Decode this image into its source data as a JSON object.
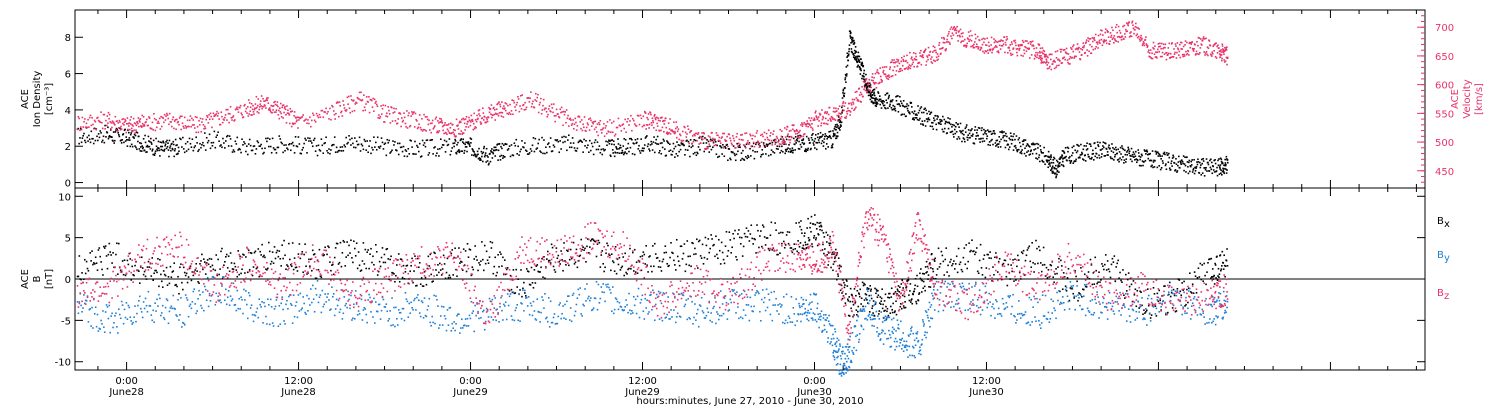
{
  "colors": {
    "black": "#000000",
    "blue": "#1e7fd6",
    "red": "#e8336a"
  },
  "chart_data": [
    {
      "type": "scatter",
      "panel": "top",
      "ylabel_lines": [
        "ACE",
        "Ion Density",
        "[cm⁻³]"
      ],
      "ylabel2_lines": [
        "ACE",
        "Velocity",
        "[km/s]"
      ],
      "ylim": [
        -0.3,
        9.5
      ],
      "y2lim": [
        420,
        730
      ],
      "yticks": [
        0,
        2,
        4,
        6,
        8
      ],
      "y2ticks": [
        450,
        500,
        550,
        600,
        650,
        700
      ],
      "series": [
        {
          "color": "black",
          "axis": "left",
          "points": [
            [
              -0.29,
              2.6
            ],
            [
              -0.12,
              2.7
            ],
            [
              0.0,
              2.5
            ],
            [
              0.1,
              2.2
            ],
            [
              0.2,
              1.9
            ],
            [
              0.3,
              2.0
            ],
            [
              0.5,
              2.4
            ],
            [
              0.7,
              2.0
            ],
            [
              0.9,
              2.2
            ],
            [
              1.1,
              2.0
            ],
            [
              1.3,
              2.3
            ],
            [
              1.5,
              2.0
            ],
            [
              1.7,
              1.9
            ],
            [
              1.9,
              2.0
            ],
            [
              2.0,
              2.0
            ],
            [
              2.1,
              1.5
            ],
            [
              2.2,
              1.9
            ],
            [
              2.4,
              2.1
            ],
            [
              2.6,
              2.2
            ],
            [
              2.8,
              1.9
            ],
            [
              2.9,
              2.0
            ],
            [
              3.05,
              2.2
            ],
            [
              3.2,
              1.8
            ],
            [
              3.35,
              2.1
            ],
            [
              3.5,
              1.7
            ],
            [
              3.65,
              1.8
            ],
            [
              3.8,
              2.1
            ],
            [
              3.9,
              2.2
            ],
            [
              4.0,
              2.3
            ],
            [
              4.1,
              2.4
            ],
            [
              4.15,
              3.5
            ],
            [
              4.2,
              8.0
            ],
            [
              4.24,
              7.0
            ],
            [
              4.28,
              6.0
            ],
            [
              4.32,
              5.0
            ],
            [
              4.36,
              4.6
            ],
            [
              4.45,
              4.5
            ],
            [
              4.55,
              4.0
            ],
            [
              4.65,
              3.6
            ],
            [
              4.75,
              3.2
            ],
            [
              4.85,
              2.8
            ],
            [
              4.95,
              2.6
            ],
            [
              5.05,
              2.5
            ],
            [
              5.15,
              2.3
            ],
            [
              5.25,
              1.9
            ],
            [
              5.35,
              1.4
            ],
            [
              5.4,
              0.8
            ],
            [
              5.45,
              1.5
            ],
            [
              5.55,
              1.7
            ],
            [
              5.65,
              1.8
            ],
            [
              5.75,
              1.7
            ],
            [
              5.85,
              1.5
            ],
            [
              5.95,
              1.3
            ],
            [
              6.05,
              1.2
            ],
            [
              6.15,
              1.0
            ],
            [
              6.25,
              0.9
            ],
            [
              6.35,
              0.9
            ],
            [
              6.4,
              1.0
            ]
          ]
        },
        {
          "color": "red",
          "axis": "right",
          "points": [
            [
              -0.29,
              535
            ],
            [
              -0.12,
              540
            ],
            [
              0.0,
              530
            ],
            [
              0.1,
              535
            ],
            [
              0.25,
              540
            ],
            [
              0.4,
              530
            ],
            [
              0.55,
              545
            ],
            [
              0.7,
              560
            ],
            [
              0.8,
              570
            ],
            [
              0.9,
              555
            ],
            [
              1.0,
              535
            ],
            [
              1.2,
              555
            ],
            [
              1.35,
              575
            ],
            [
              1.5,
              550
            ],
            [
              1.65,
              540
            ],
            [
              1.8,
              530
            ],
            [
              1.9,
              525
            ],
            [
              2.0,
              535
            ],
            [
              2.1,
              550
            ],
            [
              2.2,
              560
            ],
            [
              2.35,
              575
            ],
            [
              2.5,
              550
            ],
            [
              2.65,
              530
            ],
            [
              2.8,
              525
            ],
            [
              3.0,
              540
            ],
            [
              3.1,
              535
            ],
            [
              3.2,
              520
            ],
            [
              3.35,
              505
            ],
            [
              3.5,
              500
            ],
            [
              3.65,
              505
            ],
            [
              3.8,
              510
            ],
            [
              3.9,
              520
            ],
            [
              4.0,
              540
            ],
            [
              4.1,
              550
            ],
            [
              4.2,
              560
            ],
            [
              4.3,
              600
            ],
            [
              4.4,
              620
            ],
            [
              4.5,
              640
            ],
            [
              4.6,
              645
            ],
            [
              4.7,
              655
            ],
            [
              4.8,
              690
            ],
            [
              4.9,
              680
            ],
            [
              5.0,
              670
            ],
            [
              5.1,
              670
            ],
            [
              5.2,
              665
            ],
            [
              5.3,
              660
            ],
            [
              5.35,
              640
            ],
            [
              5.45,
              650
            ],
            [
              5.55,
              660
            ],
            [
              5.65,
              680
            ],
            [
              5.75,
              690
            ],
            [
              5.85,
              700
            ],
            [
              5.95,
              660
            ],
            [
              6.05,
              660
            ],
            [
              6.15,
              665
            ],
            [
              6.25,
              670
            ],
            [
              6.35,
              660
            ],
            [
              6.4,
              650
            ]
          ]
        }
      ]
    },
    {
      "type": "scatter",
      "panel": "bottom",
      "ylabel_lines": [
        "ACE",
        "B",
        "[nT]"
      ],
      "ylim": [
        -11,
        11
      ],
      "yticks": [
        -10,
        -5,
        0,
        5,
        10
      ],
      "legend": [
        {
          "label": "B",
          "sub": "x",
          "color": "black"
        },
        {
          "label": "B",
          "sub": "y",
          "color": "blue"
        },
        {
          "label": "B",
          "sub": "z",
          "color": "red"
        }
      ],
      "series": [
        {
          "color": "black",
          "points": [
            [
              -0.29,
              1
            ],
            [
              -0.1,
              3
            ],
            [
              0.1,
              1
            ],
            [
              0.3,
              0
            ],
            [
              0.5,
              2
            ],
            [
              0.7,
              2
            ],
            [
              0.9,
              3
            ],
            [
              1.1,
              2
            ],
            [
              1.3,
              3
            ],
            [
              1.5,
              2
            ],
            [
              1.7,
              1
            ],
            [
              1.9,
              2
            ],
            [
              2.1,
              3
            ],
            [
              2.3,
              -1
            ],
            [
              2.5,
              3
            ],
            [
              2.7,
              3
            ],
            [
              2.9,
              2
            ],
            [
              3.1,
              3
            ],
            [
              3.3,
              3
            ],
            [
              3.5,
              4
            ],
            [
              3.7,
              5
            ],
            [
              3.9,
              5
            ],
            [
              4.0,
              6
            ],
            [
              4.1,
              3
            ],
            [
              4.2,
              -3
            ],
            [
              4.3,
              -2
            ],
            [
              4.4,
              -3
            ],
            [
              4.5,
              -2
            ],
            [
              4.6,
              -1
            ],
            [
              4.7,
              2
            ],
            [
              4.9,
              3
            ],
            [
              5.1,
              1
            ],
            [
              5.3,
              3
            ],
            [
              5.5,
              -1
            ],
            [
              5.7,
              2
            ],
            [
              5.9,
              -3
            ],
            [
              6.1,
              -2
            ],
            [
              6.3,
              1
            ],
            [
              6.4,
              2
            ]
          ]
        },
        {
          "color": "blue",
          "points": [
            [
              -0.29,
              -3
            ],
            [
              -0.1,
              -5
            ],
            [
              0.1,
              -3
            ],
            [
              0.3,
              -4
            ],
            [
              0.5,
              -1
            ],
            [
              0.7,
              -3
            ],
            [
              0.9,
              -4
            ],
            [
              1.1,
              -2
            ],
            [
              1.3,
              -3
            ],
            [
              1.5,
              -4
            ],
            [
              1.7,
              -3
            ],
            [
              1.9,
              -5
            ],
            [
              2.1,
              -4
            ],
            [
              2.3,
              -3
            ],
            [
              2.5,
              -4
            ],
            [
              2.7,
              -2
            ],
            [
              2.9,
              -3
            ],
            [
              3.1,
              -3
            ],
            [
              3.3,
              -4
            ],
            [
              3.5,
              -3
            ],
            [
              3.7,
              -3
            ],
            [
              3.9,
              -4
            ],
            [
              4.0,
              -3
            ],
            [
              4.1,
              -7
            ],
            [
              4.15,
              -10
            ],
            [
              4.2,
              -9
            ],
            [
              4.3,
              -3
            ],
            [
              4.4,
              -6
            ],
            [
              4.5,
              -7
            ],
            [
              4.6,
              -8
            ],
            [
              4.7,
              -2
            ],
            [
              4.9,
              -2
            ],
            [
              5.1,
              -3
            ],
            [
              5.3,
              -4
            ],
            [
              5.5,
              -2
            ],
            [
              5.7,
              -3
            ],
            [
              5.9,
              -4
            ],
            [
              6.1,
              -2
            ],
            [
              6.3,
              -4
            ],
            [
              6.4,
              -3
            ]
          ]
        },
        {
          "color": "red",
          "points": [
            [
              -0.29,
              -2
            ],
            [
              -0.1,
              -1
            ],
            [
              0.1,
              3
            ],
            [
              0.3,
              4
            ],
            [
              0.5,
              -1
            ],
            [
              0.7,
              2
            ],
            [
              0.9,
              -1
            ],
            [
              1.1,
              3
            ],
            [
              1.3,
              -2
            ],
            [
              1.5,
              0
            ],
            [
              1.7,
              2
            ],
            [
              1.9,
              3
            ],
            [
              2.1,
              -5
            ],
            [
              2.3,
              4
            ],
            [
              2.5,
              3
            ],
            [
              2.7,
              5
            ],
            [
              2.9,
              4
            ],
            [
              3.1,
              -3
            ],
            [
              3.3,
              0
            ],
            [
              3.5,
              -2
            ],
            [
              3.7,
              2
            ],
            [
              3.9,
              3
            ],
            [
              4.0,
              2
            ],
            [
              4.1,
              4
            ],
            [
              4.2,
              -6
            ],
            [
              4.3,
              8
            ],
            [
              4.4,
              5
            ],
            [
              4.5,
              -3
            ],
            [
              4.6,
              7
            ],
            [
              4.7,
              -1
            ],
            [
              4.9,
              -3
            ],
            [
              5.1,
              2
            ],
            [
              5.3,
              -1
            ],
            [
              5.5,
              3
            ],
            [
              5.7,
              -2
            ],
            [
              5.9,
              -1
            ],
            [
              6.1,
              -3
            ],
            [
              6.3,
              -2
            ],
            [
              6.4,
              -1
            ]
          ]
        }
      ]
    }
  ],
  "x_axis": {
    "xlim": [
      -0.3,
      7.55
    ],
    "major_ticks": [
      0,
      1,
      2,
      3,
      4,
      5
    ],
    "tick_labels": [
      {
        "x": 0,
        "time": "0:00",
        "day": "June28"
      },
      {
        "x": 1,
        "time": "12:00",
        "day": "June28"
      },
      {
        "x": 2,
        "time": "0:00",
        "day": "June29"
      },
      {
        "x": 3,
        "time": "12:00",
        "day": "June29"
      },
      {
        "x": 4,
        "time": "0:00",
        "day": "June30"
      },
      {
        "x": 5,
        "time": "12:00",
        "day": "June30"
      }
    ],
    "xlabel": "hours:minutes, June 27, 2010 - June 30, 2010"
  }
}
